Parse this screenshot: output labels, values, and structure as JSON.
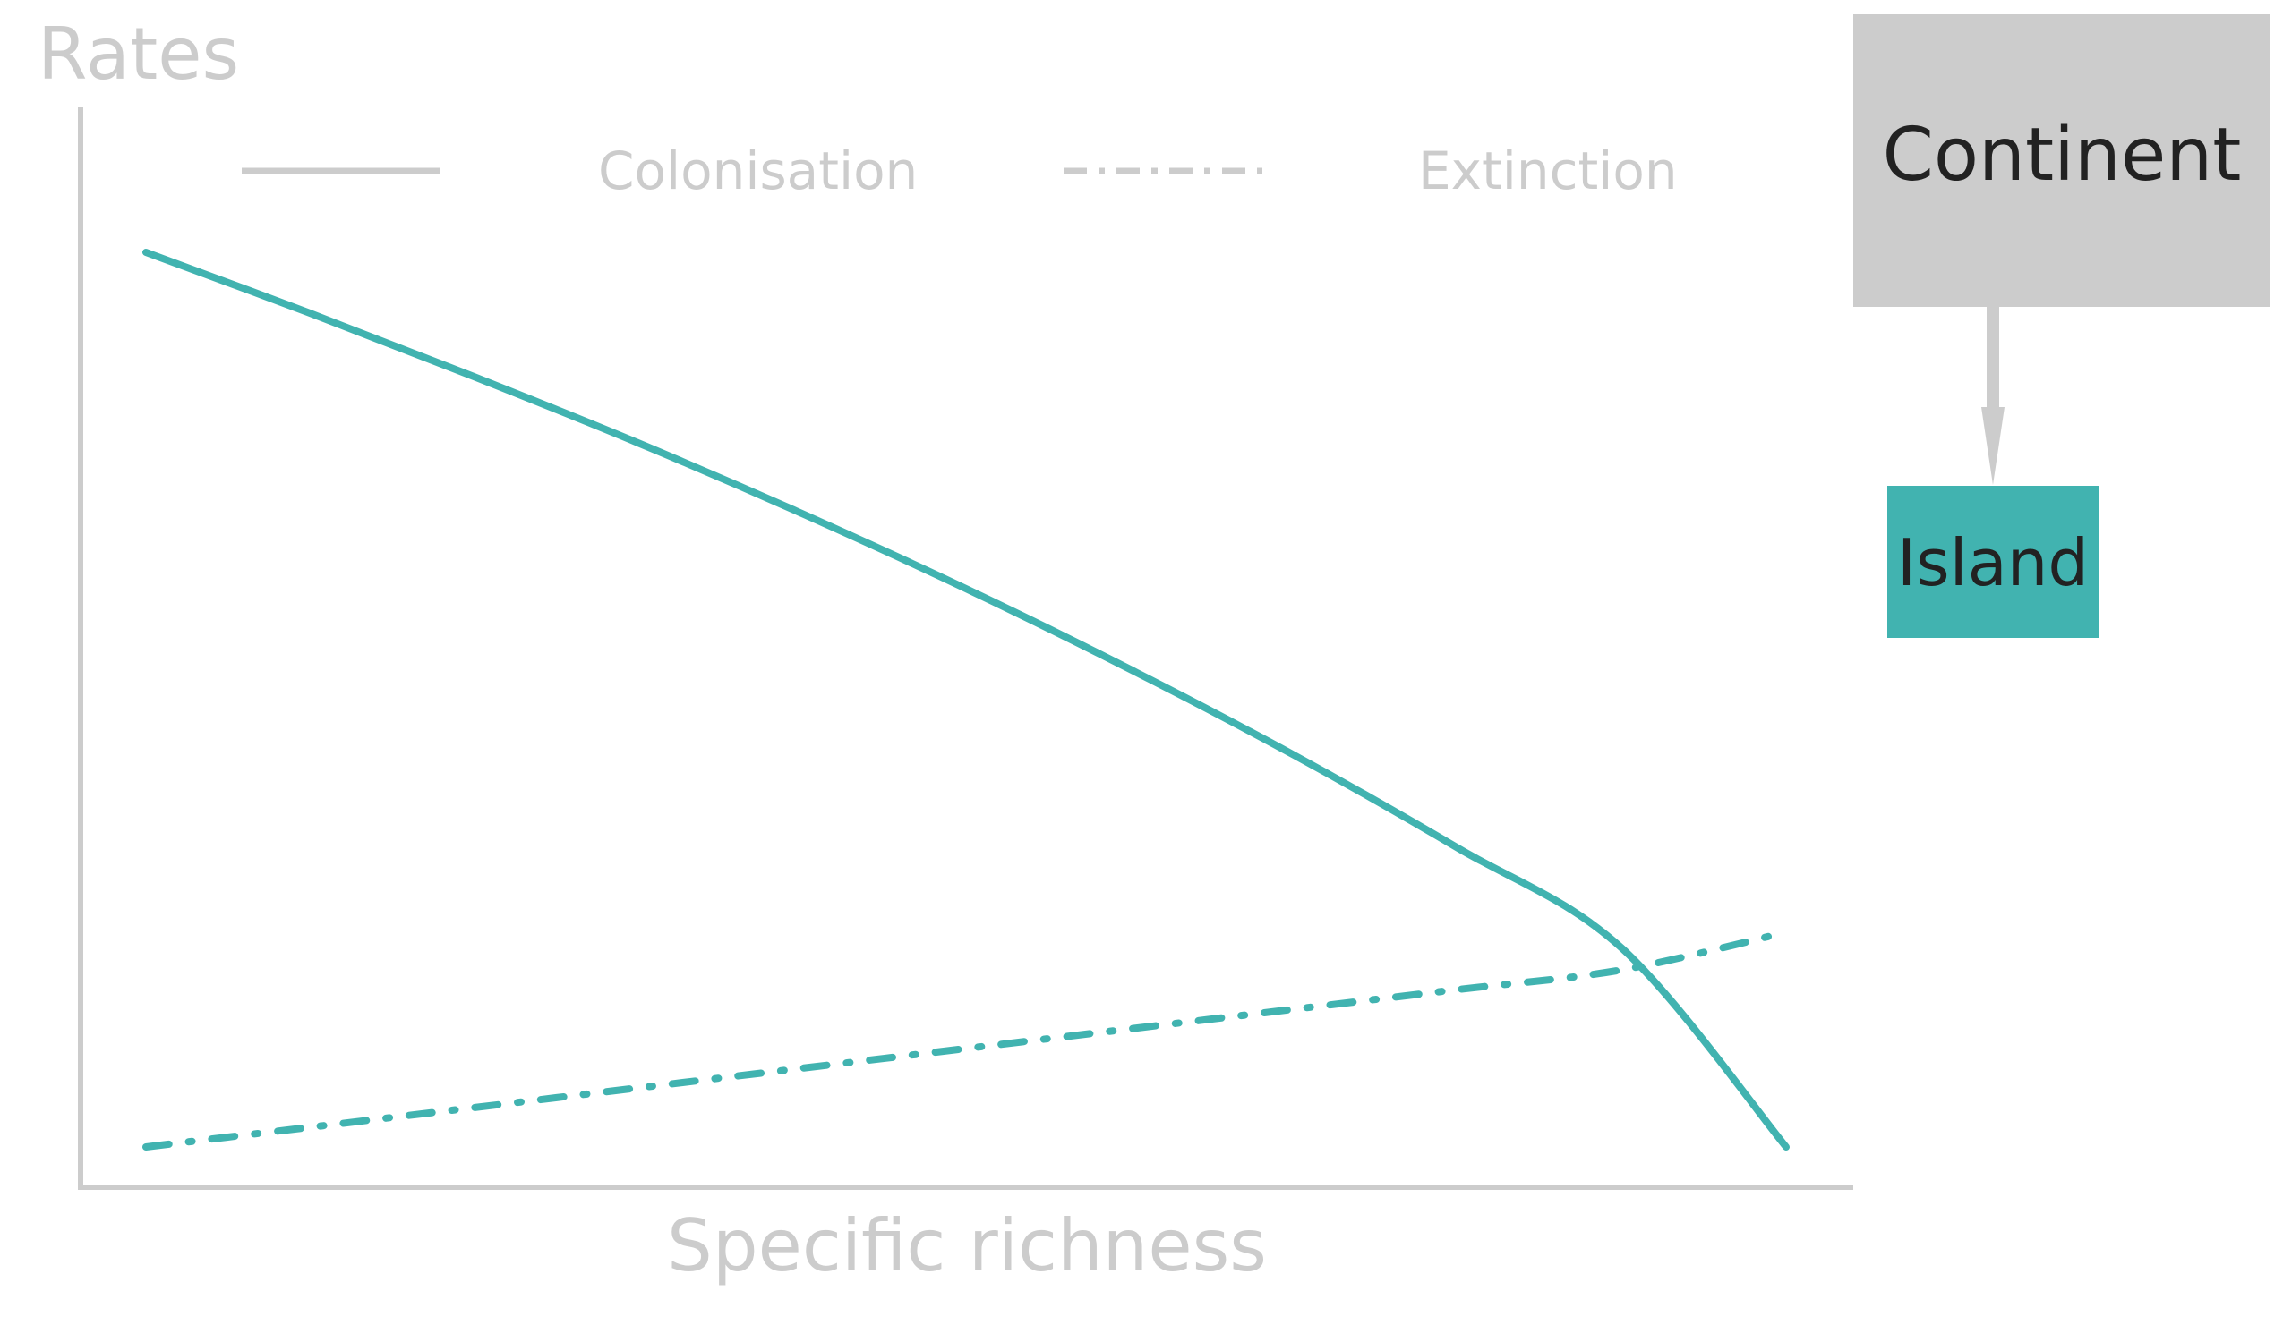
{
  "colors": {
    "axis": "#cccccc",
    "series": "#41b3b0",
    "continent_box": "#cccccc",
    "island_box": "#41b3b0",
    "node_text": "#222222"
  },
  "chart_data": {
    "type": "line",
    "ylabel": "Rates",
    "xlabel": "Specific richness",
    "x": [
      0,
      0.1,
      0.2,
      0.3,
      0.4,
      0.5,
      0.6,
      0.7,
      0.8,
      0.9,
      1.0
    ],
    "series": [
      {
        "name": "Colonisation",
        "line_style": "solid",
        "values": [
          1.0,
          0.932,
          0.861,
          0.787,
          0.708,
          0.624,
          0.534,
          0.438,
          0.334,
          0.222,
          0.0
        ]
      },
      {
        "name": "Extinction",
        "line_style": "dash-dot",
        "values": [
          0.0,
          0.022,
          0.044,
          0.066,
          0.088,
          0.11,
          0.132,
          0.154,
          0.176,
          0.198,
          0.24
        ]
      }
    ],
    "xlim": [
      0,
      1
    ],
    "ylim": [
      0,
      1
    ],
    "ticks": "none",
    "grid": false,
    "legend_position": "top"
  },
  "diagram": {
    "continent_label": "Continent",
    "island_label": "Island"
  }
}
